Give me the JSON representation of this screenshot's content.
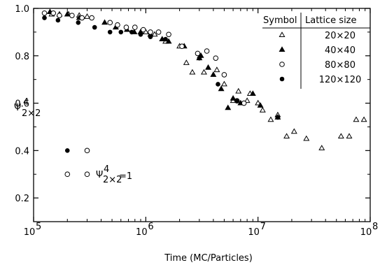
{
  "chart_data": {
    "type": "scatter",
    "xlabel": "Time (MC/Particles)",
    "ylabel": "Ψ",
    "ylabel_sup": "4",
    "ylabel_sub": "2×2",
    "x_log": true,
    "xlim": [
      100000,
      100000000
    ],
    "ylim": [
      0.1,
      1.0
    ],
    "x_ticks": [
      {
        "value": 100000,
        "base": "10",
        "exp": "5"
      },
      {
        "value": 1000000,
        "base": "10",
        "exp": "6"
      },
      {
        "value": 10000000,
        "base": "10",
        "exp": "7"
      },
      {
        "value": 100000000,
        "base": "10",
        "exp": "8"
      }
    ],
    "y_ticks": [
      {
        "value": 0.2,
        "label": "0.2"
      },
      {
        "value": 0.4,
        "label": "0.4"
      },
      {
        "value": 0.6,
        "label": "0.6"
      },
      {
        "value": 0.8,
        "label": "0.8"
      },
      {
        "value": 1.0,
        "label": "1.0"
      }
    ],
    "legend": {
      "header_symbol": "Symbol",
      "header_size": "Lattice size",
      "placement": "top-right"
    },
    "series": [
      {
        "name": "20×20",
        "marker": "open-triangle",
        "points": [
          [
            145000,
            0.975
          ],
          [
            170000,
            0.975
          ],
          [
            205000,
            0.975
          ],
          [
            255000,
            0.97
          ],
          [
            300000,
            0.965
          ],
          [
            1000000,
            0.9
          ],
          [
            1200000,
            0.89
          ],
          [
            1500000,
            0.86
          ],
          [
            2000000,
            0.84
          ],
          [
            2300000,
            0.77
          ],
          [
            2600000,
            0.73
          ],
          [
            3000000,
            0.79
          ],
          [
            3300000,
            0.73
          ],
          [
            4300000,
            0.74
          ],
          [
            5000000,
            0.68
          ],
          [
            6000000,
            0.61
          ],
          [
            6700000,
            0.65
          ],
          [
            8000000,
            0.61
          ],
          [
            8500000,
            0.64
          ],
          [
            10000000,
            0.6
          ],
          [
            11000000,
            0.57
          ],
          [
            13000000,
            0.53
          ],
          [
            15000000,
            0.55
          ],
          [
            18000000,
            0.46
          ],
          [
            21000000,
            0.48
          ],
          [
            27000000,
            0.45
          ],
          [
            37000000,
            0.41
          ],
          [
            55000000,
            0.46
          ],
          [
            65000000,
            0.46
          ],
          [
            75000000,
            0.53
          ],
          [
            88000000,
            0.53
          ]
        ]
      },
      {
        "name": "40×40",
        "marker": "filled-triangle",
        "points": [
          [
            140000,
            0.985
          ],
          [
            200000,
            0.975
          ],
          [
            255000,
            0.96
          ],
          [
            430000,
            0.94
          ],
          [
            540000,
            0.92
          ],
          [
            680000,
            0.91
          ],
          [
            790000,
            0.9
          ],
          [
            900000,
            0.9
          ],
          [
            1100000,
            0.89
          ],
          [
            1400000,
            0.87
          ],
          [
            1600000,
            0.86
          ],
          [
            2200000,
            0.84
          ],
          [
            3100000,
            0.8
          ],
          [
            3600000,
            0.75
          ],
          [
            4000000,
            0.72
          ],
          [
            4700000,
            0.66
          ],
          [
            5400000,
            0.58
          ],
          [
            6000000,
            0.62
          ],
          [
            7000000,
            0.6
          ],
          [
            9000000,
            0.64
          ],
          [
            10500000,
            0.59
          ],
          [
            15000000,
            0.54
          ]
        ]
      },
      {
        "name": "80×80",
        "marker": "open-circle",
        "points": [
          [
            125000,
            0.98
          ],
          [
            150000,
            0.98
          ],
          [
            170000,
            0.97
          ],
          [
            220000,
            0.97
          ],
          [
            270000,
            0.96
          ],
          [
            330000,
            0.96
          ],
          [
            480000,
            0.94
          ],
          [
            560000,
            0.93
          ],
          [
            670000,
            0.92
          ],
          [
            800000,
            0.92
          ],
          [
            950000,
            0.91
          ],
          [
            1100000,
            0.9
          ],
          [
            1300000,
            0.9
          ],
          [
            1600000,
            0.89
          ],
          [
            2100000,
            0.84
          ],
          [
            2900000,
            0.81
          ],
          [
            3500000,
            0.82
          ],
          [
            4200000,
            0.79
          ],
          [
            5000000,
            0.72
          ],
          [
            6500000,
            0.61
          ],
          [
            7500000,
            0.6
          ]
        ]
      },
      {
        "name": "120×120",
        "marker": "filled-circle",
        "points": [
          [
            125000,
            0.96
          ],
          [
            165000,
            0.95
          ],
          [
            250000,
            0.94
          ],
          [
            350000,
            0.92
          ],
          [
            480000,
            0.9
          ],
          [
            600000,
            0.9
          ],
          [
            750000,
            0.9
          ],
          [
            900000,
            0.89
          ],
          [
            1100000,
            0.88
          ],
          [
            1500000,
            0.87
          ],
          [
            3000000,
            0.79
          ],
          [
            4400000,
            0.68
          ],
          [
            6500000,
            0.61
          ],
          [
            15000000,
            0.54
          ]
        ]
      }
    ],
    "annotation": {
      "label_base": "Ψ",
      "label_sup": "4",
      "label_sub": "2×2",
      "label_value": "=1",
      "markers": [
        {
          "marker": "filled-circle",
          "x": 200000,
          "y": 0.4
        },
        {
          "marker": "open-circle",
          "x": 300000,
          "y": 0.4
        },
        {
          "marker": "open-circle",
          "x": 200000,
          "y": 0.3
        },
        {
          "marker": "open-circle",
          "x": 300000,
          "y": 0.3
        }
      ]
    }
  }
}
